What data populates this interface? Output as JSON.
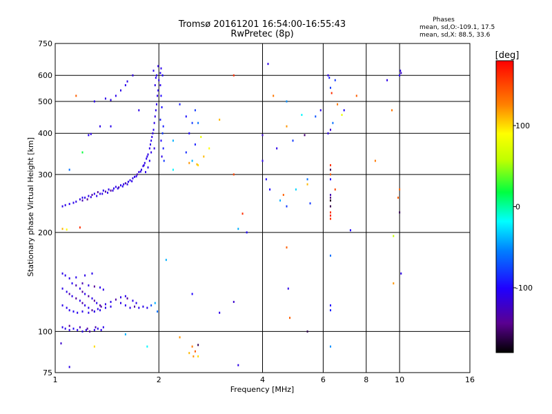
{
  "chart_data": {
    "type": "scatter",
    "title": "Tromsø 20161201 16:54:00-16:55:43",
    "subtitle": "RwPretec (8p)",
    "xlabel": "Frequency [MHz]",
    "ylabel": "Stationary phase Virtual Height [km]",
    "x_scale": "log",
    "y_scale": "log",
    "xlim": [
      1,
      16
    ],
    "ylim": [
      75,
      750
    ],
    "x_ticks": [
      1,
      2,
      4,
      6,
      8,
      10,
      16
    ],
    "x_tick_labels": [
      "1",
      "2",
      "4",
      "6",
      "8",
      "10",
      "16"
    ],
    "y_ticks": [
      75,
      100,
      200,
      300,
      400,
      500,
      600,
      750
    ],
    "y_tick_labels": [
      "75",
      "100",
      "200",
      "300",
      "400",
      "500",
      "600",
      "750"
    ],
    "grid": true,
    "stats": {
      "heading": "Phases",
      "line1": "mean, sd,O:-109.1, 17.5",
      "line2": "mean, sd,X:  88.5, 33.6"
    },
    "colorbar": {
      "label": "[deg]",
      "range": [
        -180,
        180
      ],
      "ticks": [
        100,
        0,
        -100
      ],
      "tick_labels": [
        "100",
        "0",
        "-100"
      ]
    },
    "points": [
      [
        1.05,
        240,
        -110
      ],
      [
        1.07,
        242,
        -110
      ],
      [
        1.1,
        244,
        -105
      ],
      [
        1.13,
        246,
        -108
      ],
      [
        1.15,
        248,
        -110
      ],
      [
        1.18,
        252,
        -112
      ],
      [
        1.2,
        250,
        -130
      ],
      [
        1.22,
        255,
        -110
      ],
      [
        1.25,
        258,
        -108
      ],
      [
        1.28,
        260,
        -135
      ],
      [
        1.3,
        262,
        -110
      ],
      [
        1.33,
        265,
        -140
      ],
      [
        1.35,
        262,
        -110
      ],
      [
        1.38,
        268,
        -108
      ],
      [
        1.4,
        266,
        -135
      ],
      [
        1.43,
        270,
        -110
      ],
      [
        1.45,
        268,
        -140
      ],
      [
        1.48,
        272,
        -110
      ],
      [
        1.5,
        275,
        -108
      ],
      [
        1.53,
        274,
        -135
      ],
      [
        1.55,
        278,
        -110
      ],
      [
        1.58,
        280,
        -108
      ],
      [
        1.6,
        282,
        -130
      ],
      [
        1.63,
        285,
        -110
      ],
      [
        1.65,
        288,
        -108
      ],
      [
        1.68,
        292,
        -112
      ],
      [
        1.7,
        295,
        -110
      ],
      [
        1.73,
        300,
        -130
      ],
      [
        1.75,
        305,
        -110
      ],
      [
        1.78,
        310,
        -108
      ],
      [
        1.8,
        318,
        -112
      ],
      [
        1.82,
        325,
        -110
      ],
      [
        1.84,
        335,
        -108
      ],
      [
        1.86,
        345,
        -112
      ],
      [
        1.88,
        360,
        -110
      ],
      [
        1.9,
        380,
        -108
      ],
      [
        1.92,
        400,
        -112
      ],
      [
        1.94,
        430,
        -110
      ],
      [
        1.96,
        470,
        -108
      ],
      [
        1.98,
        520,
        -112
      ],
      [
        1.95,
        560,
        -110
      ],
      [
        1.97,
        600,
        -108
      ],
      [
        1.99,
        640,
        -112
      ],
      [
        1.93,
        620,
        -110
      ],
      [
        1.96,
        590,
        -108
      ],
      [
        1.2,
        255,
        -108
      ],
      [
        1.24,
        252,
        -140
      ],
      [
        1.27,
        256,
        -110
      ],
      [
        1.32,
        258,
        -108
      ],
      [
        1.37,
        262,
        -110
      ],
      [
        1.42,
        264,
        -108
      ],
      [
        1.47,
        268,
        -112
      ],
      [
        1.52,
        272,
        -110
      ],
      [
        1.57,
        276,
        -108
      ],
      [
        1.62,
        280,
        -112
      ],
      [
        1.67,
        286,
        -110
      ],
      [
        1.72,
        296,
        -108
      ],
      [
        1.77,
        306,
        -112
      ],
      [
        1.81,
        320,
        -110
      ],
      [
        1.85,
        340,
        -108
      ],
      [
        1.89,
        370,
        -112
      ],
      [
        1.91,
        390,
        -110
      ],
      [
        1.93,
        410,
        -108
      ],
      [
        1.95,
        450,
        -112
      ],
      [
        1.97,
        490,
        -110
      ],
      [
        1.99,
        540,
        -108
      ],
      [
        2.0,
        580,
        -112
      ],
      [
        1.9,
        350,
        -110
      ],
      [
        1.88,
        330,
        -108
      ],
      [
        1.94,
        360,
        -112
      ],
      [
        1.86,
        315,
        -110
      ],
      [
        1.83,
        305,
        -108
      ],
      [
        2.02,
        560,
        -110
      ],
      [
        2.03,
        520,
        -100
      ],
      [
        2.04,
        480,
        -95
      ],
      [
        2.02,
        440,
        -90
      ],
      [
        2.05,
        400,
        -80
      ],
      [
        2.03,
        380,
        -100
      ],
      [
        2.06,
        360,
        -90
      ],
      [
        2.04,
        340,
        -110
      ],
      [
        2.07,
        330,
        -80
      ],
      [
        2.02,
        610,
        -105
      ],
      [
        2.03,
        630,
        -110
      ],
      [
        2.05,
        600,
        -100
      ],
      [
        2.06,
        420,
        -90
      ],
      [
        1.4,
        510,
        -110
      ],
      [
        1.5,
        520,
        -108
      ],
      [
        1.55,
        540,
        -110
      ],
      [
        1.6,
        560,
        -108
      ],
      [
        1.62,
        575,
        -110
      ],
      [
        1.68,
        600,
        -112
      ],
      [
        1.45,
        505,
        -110
      ],
      [
        1.3,
        500,
        -108
      ],
      [
        1.35,
        420,
        -110
      ],
      [
        1.25,
        395,
        -105
      ],
      [
        1.27,
        398,
        -110
      ],
      [
        1.75,
        470,
        -110
      ],
      [
        1.45,
        420,
        -108
      ],
      [
        2.3,
        490,
        -90
      ],
      [
        2.4,
        450,
        -95
      ],
      [
        2.5,
        430,
        -80
      ],
      [
        2.45,
        400,
        -100
      ],
      [
        2.55,
        370,
        -90
      ],
      [
        2.4,
        350,
        -85
      ],
      [
        2.5,
        330,
        -40
      ],
      [
        2.6,
        320,
        100
      ],
      [
        2.7,
        340,
        110
      ],
      [
        2.8,
        360,
        90
      ],
      [
        2.65,
        390,
        80
      ],
      [
        2.6,
        430,
        -60
      ],
      [
        2.55,
        470,
        -80
      ],
      [
        2.2,
        380,
        -40
      ],
      [
        2.2,
        310,
        -20
      ],
      [
        2.45,
        325,
        120
      ],
      [
        2.58,
        322,
        110
      ],
      [
        1.05,
        150,
        -110
      ],
      [
        1.07,
        148,
        -108
      ],
      [
        1.1,
        145,
        -110
      ],
      [
        1.12,
        140,
        -105
      ],
      [
        1.15,
        138,
        -130
      ],
      [
        1.18,
        135,
        -110
      ],
      [
        1.2,
        132,
        -140
      ],
      [
        1.22,
        130,
        -108
      ],
      [
        1.25,
        128,
        -135
      ],
      [
        1.28,
        126,
        -110
      ],
      [
        1.3,
        124,
        -140
      ],
      [
        1.32,
        122,
        -108
      ],
      [
        1.35,
        120,
        -135
      ],
      [
        1.05,
        135,
        -110
      ],
      [
        1.08,
        132,
        -108
      ],
      [
        1.1,
        130,
        -135
      ],
      [
        1.12,
        128,
        -110
      ],
      [
        1.15,
        126,
        -140
      ],
      [
        1.18,
        124,
        -108
      ],
      [
        1.2,
        122,
        -135
      ],
      [
        1.22,
        120,
        -110
      ],
      [
        1.25,
        118,
        -108
      ],
      [
        1.28,
        116,
        -140
      ],
      [
        1.3,
        115,
        -110
      ],
      [
        1.33,
        117,
        -108
      ],
      [
        1.36,
        119,
        -135
      ],
      [
        1.4,
        121,
        -110
      ],
      [
        1.45,
        123,
        -108
      ],
      [
        1.5,
        125,
        -135
      ],
      [
        1.55,
        122,
        -110
      ],
      [
        1.6,
        120,
        -108
      ],
      [
        1.65,
        118,
        -110
      ],
      [
        1.7,
        119,
        -135
      ],
      [
        1.75,
        118,
        -108
      ],
      [
        1.8,
        119,
        -110
      ],
      [
        1.85,
        118,
        -108
      ],
      [
        1.9,
        120,
        -70
      ],
      [
        1.95,
        122,
        -40
      ],
      [
        1.98,
        115,
        -60
      ],
      [
        1.05,
        120,
        -110
      ],
      [
        1.08,
        118,
        -108
      ],
      [
        1.1,
        116,
        -110
      ],
      [
        1.13,
        115,
        -105
      ],
      [
        1.16,
        114,
        -108
      ],
      [
        1.2,
        115,
        -110
      ],
      [
        1.25,
        114,
        -108
      ],
      [
        1.3,
        115,
        -110
      ],
      [
        1.35,
        116,
        -108
      ],
      [
        1.4,
        118,
        -110
      ],
      [
        1.45,
        119,
        -108
      ],
      [
        1.55,
        127,
        -110
      ],
      [
        1.6,
        128,
        -108
      ],
      [
        1.62,
        126,
        -140
      ],
      [
        1.68,
        124,
        -110
      ],
      [
        1.72,
        122,
        -108
      ],
      [
        1.2,
        140,
        -130
      ],
      [
        1.25,
        138,
        -110
      ],
      [
        1.3,
        137,
        -140
      ],
      [
        1.35,
        136,
        -108
      ],
      [
        1.38,
        134,
        -110
      ],
      [
        1.15,
        146,
        -108
      ],
      [
        1.22,
        148,
        -110
      ],
      [
        1.28,
        150,
        -108
      ],
      [
        1.05,
        103,
        -110
      ],
      [
        1.07,
        102,
        -108
      ],
      [
        1.1,
        101,
        -110
      ],
      [
        1.13,
        102,
        -105
      ],
      [
        1.16,
        101,
        -108
      ],
      [
        1.2,
        100,
        -110
      ],
      [
        1.23,
        101,
        -108
      ],
      [
        1.26,
        100,
        -135
      ],
      [
        1.3,
        101,
        -110
      ],
      [
        1.33,
        102,
        -108
      ],
      [
        1.36,
        101,
        -110
      ],
      [
        1.38,
        103,
        -108
      ],
      [
        1.1,
        104,
        -140
      ],
      [
        1.18,
        103,
        -130
      ],
      [
        1.24,
        102,
        -140
      ],
      [
        1.31,
        103,
        -130
      ],
      [
        1.15,
        520,
        140
      ],
      [
        1.2,
        350,
        20
      ],
      [
        1.1,
        310,
        -60
      ],
      [
        1.05,
        205,
        110
      ],
      [
        1.08,
        204,
        90
      ],
      [
        1.18,
        207,
        160
      ],
      [
        1.04,
        92,
        -120
      ],
      [
        1.1,
        78,
        -110
      ],
      [
        1.3,
        90,
        100
      ],
      [
        1.6,
        98,
        -40
      ],
      [
        1.85,
        90,
        -20
      ],
      [
        2.1,
        165,
        -40
      ],
      [
        2.3,
        96,
        120
      ],
      [
        2.5,
        90,
        130
      ],
      [
        2.55,
        87,
        140
      ],
      [
        2.6,
        91,
        -160
      ],
      [
        2.45,
        86,
        110
      ],
      [
        2.52,
        84,
        120
      ],
      [
        2.6,
        84,
        100
      ],
      [
        2.5,
        130,
        -100
      ],
      [
        3.0,
        114,
        -110
      ],
      [
        3.3,
        123,
        -120
      ],
      [
        3.4,
        79,
        -110
      ],
      [
        3.3,
        300,
        150
      ],
      [
        3.5,
        228,
        160
      ],
      [
        3.4,
        205,
        -40
      ],
      [
        3.6,
        200,
        -100
      ],
      [
        3.3,
        600,
        160
      ],
      [
        3.0,
        440,
        110
      ],
      [
        4.0,
        395,
        -120
      ],
      [
        4.0,
        330,
        -110
      ],
      [
        4.1,
        290,
        -100
      ],
      [
        4.15,
        650,
        -110
      ],
      [
        4.2,
        270,
        -100
      ],
      [
        4.3,
        520,
        130
      ],
      [
        4.4,
        360,
        -110
      ],
      [
        4.5,
        250,
        -40
      ],
      [
        4.6,
        260,
        140
      ],
      [
        4.7,
        500,
        -50
      ],
      [
        4.7,
        420,
        120
      ],
      [
        4.7,
        240,
        -80
      ],
      [
        4.7,
        180,
        140
      ],
      [
        4.75,
        135,
        -110
      ],
      [
        4.8,
        110,
        140
      ],
      [
        4.9,
        380,
        -80
      ],
      [
        5.0,
        270,
        -30
      ],
      [
        5.2,
        455,
        -20
      ],
      [
        5.3,
        395,
        -150
      ],
      [
        5.4,
        280,
        110
      ],
      [
        5.4,
        290,
        -60
      ],
      [
        5.4,
        100,
        -160
      ],
      [
        5.5,
        245,
        -80
      ],
      [
        5.7,
        450,
        -70
      ],
      [
        5.9,
        470,
        -110
      ],
      [
        6.2,
        600,
        -110
      ],
      [
        6.25,
        590,
        -90
      ],
      [
        6.3,
        550,
        -80
      ],
      [
        6.35,
        530,
        160
      ],
      [
        6.2,
        400,
        -110
      ],
      [
        6.3,
        320,
        160
      ],
      [
        6.3,
        310,
        -160
      ],
      [
        6.3,
        300,
        140
      ],
      [
        6.3,
        290,
        -100
      ],
      [
        6.3,
        260,
        -130
      ],
      [
        6.3,
        255,
        -150
      ],
      [
        6.3,
        250,
        160
      ],
      [
        6.3,
        240,
        170
      ],
      [
        6.3,
        230,
        160
      ],
      [
        6.3,
        225,
        170
      ],
      [
        6.3,
        220,
        160
      ],
      [
        6.3,
        240,
        -160
      ],
      [
        6.3,
        250,
        -170
      ],
      [
        6.5,
        270,
        150
      ],
      [
        6.5,
        580,
        -80
      ],
      [
        6.6,
        490,
        130
      ],
      [
        6.4,
        430,
        -60
      ],
      [
        6.3,
        410,
        -120
      ],
      [
        6.3,
        170,
        -60
      ],
      [
        6.3,
        120,
        -100
      ],
      [
        6.3,
        116,
        -90
      ],
      [
        6.3,
        90,
        -50
      ],
      [
        6.8,
        455,
        80
      ],
      [
        6.9,
        470,
        -100
      ],
      [
        7.5,
        520,
        140
      ],
      [
        7.2,
        203,
        -100
      ],
      [
        8.5,
        330,
        130
      ],
      [
        9.2,
        580,
        -110
      ],
      [
        9.5,
        470,
        130
      ],
      [
        9.6,
        195,
        60
      ],
      [
        9.6,
        140,
        120
      ],
      [
        9.9,
        255,
        140
      ],
      [
        10.0,
        270,
        140
      ],
      [
        10.0,
        230,
        -160
      ],
      [
        10.1,
        150,
        -110
      ],
      [
        10.05,
        620,
        -110
      ],
      [
        10.1,
        610,
        -120
      ],
      [
        10.0,
        600,
        -100
      ]
    ]
  }
}
